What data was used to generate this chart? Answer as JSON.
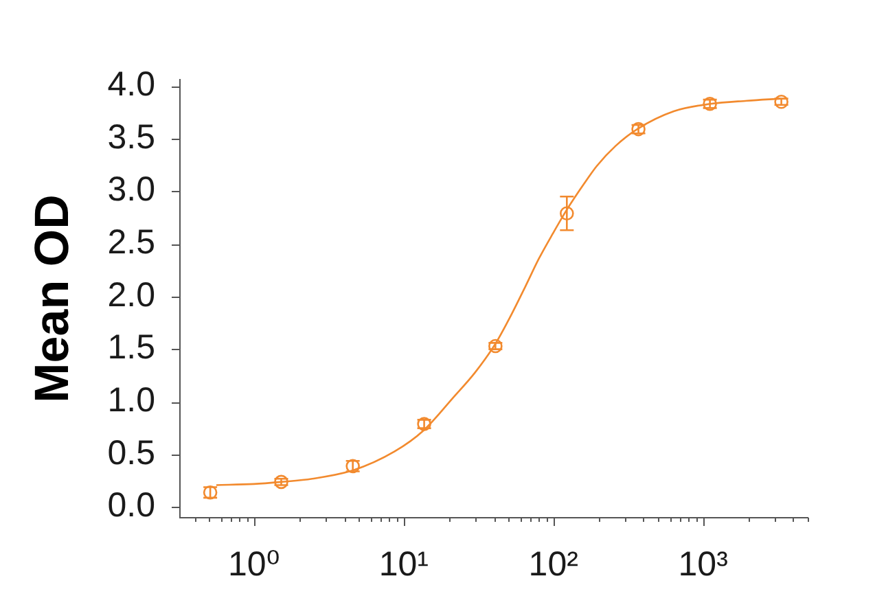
{
  "chart_data": {
    "type": "scatter",
    "ylabel": "Mean OD",
    "log": "x",
    "xlim": [
      0.32,
      5000
    ],
    "xticks": [
      {
        "value": 0.4,
        "label": null
      },
      {
        "value": 0.5,
        "label": null
      },
      {
        "value": 0.6,
        "label": null
      },
      {
        "value": 0.7,
        "label": null
      },
      {
        "value": 0.8,
        "label": null
      },
      {
        "value": 0.9,
        "label": null
      },
      {
        "value": 1,
        "label": "10⁰"
      },
      {
        "value": 2,
        "label": null
      },
      {
        "value": 3,
        "label": null
      },
      {
        "value": 4,
        "label": null
      },
      {
        "value": 5,
        "label": null
      },
      {
        "value": 6,
        "label": null
      },
      {
        "value": 7,
        "label": null
      },
      {
        "value": 8,
        "label": null
      },
      {
        "value": 9,
        "label": null
      },
      {
        "value": 10,
        "label": "10¹"
      },
      {
        "value": 20,
        "label": null
      },
      {
        "value": 30,
        "label": null
      },
      {
        "value": 40,
        "label": null
      },
      {
        "value": 50,
        "label": null
      },
      {
        "value": 60,
        "label": null
      },
      {
        "value": 70,
        "label": null
      },
      {
        "value": 80,
        "label": null
      },
      {
        "value": 90,
        "label": null
      },
      {
        "value": 100,
        "label": "10²"
      },
      {
        "value": 200,
        "label": null
      },
      {
        "value": 300,
        "label": null
      },
      {
        "value": 400,
        "label": null
      },
      {
        "value": 500,
        "label": null
      },
      {
        "value": 600,
        "label": null
      },
      {
        "value": 700,
        "label": null
      },
      {
        "value": 800,
        "label": null
      },
      {
        "value": 900,
        "label": null
      },
      {
        "value": 1000,
        "label": "10³"
      },
      {
        "value": 2000,
        "label": null
      },
      {
        "value": 3000,
        "label": null
      },
      {
        "value": 4000,
        "label": null
      },
      {
        "value": 5000,
        "label": null
      }
    ],
    "ylim": [
      -0.1,
      4.06
    ],
    "yticks": [
      {
        "value": 0,
        "label": "0.0"
      },
      {
        "value": 0.5,
        "label": "0.5"
      },
      {
        "value": 1,
        "label": "1.0"
      },
      {
        "value": 1.5,
        "label": "1.5"
      },
      {
        "value": 2,
        "label": "2.0"
      },
      {
        "value": 2.5,
        "label": "2.5"
      },
      {
        "value": 3,
        "label": "3.0"
      },
      {
        "value": 3.5,
        "label": "3.5"
      },
      {
        "value": 4,
        "label": "4.0"
      }
    ],
    "series": [
      {
        "type": "scatter",
        "marker": "circle",
        "color": "#f28a2e",
        "x": [
          0.51,
          1.52,
          4.57,
          13.7,
          41,
          123,
          370,
          1111,
          3333
        ],
        "values": [
          0.14,
          0.24,
          0.39,
          0.79,
          1.53,
          2.79,
          3.59,
          3.83,
          3.85
        ],
        "errors": [
          0.05,
          0.03,
          0.05,
          0.04,
          0.03,
          0.16,
          0.04,
          0.04,
          0.03
        ]
      },
      {
        "type": "line",
        "marker": "none",
        "color": "#f28a2e",
        "x": [
          0.56,
          1.0,
          1.52,
          2.45,
          4.58,
          8.7,
          13.6,
          21.7,
          30,
          40.9,
          52,
          65.2,
          80,
          99.3,
          123.6,
          160,
          195,
          260,
          363,
          638,
          1120,
          1965,
          3290
        ],
        "values": [
          0.21,
          0.22,
          0.24,
          0.27,
          0.35,
          0.53,
          0.73,
          1.05,
          1.28,
          1.55,
          1.82,
          2.1,
          2.36,
          2.6,
          2.83,
          3.07,
          3.24,
          3.43,
          3.59,
          3.76,
          3.83,
          3.86,
          3.88
        ]
      }
    ]
  }
}
